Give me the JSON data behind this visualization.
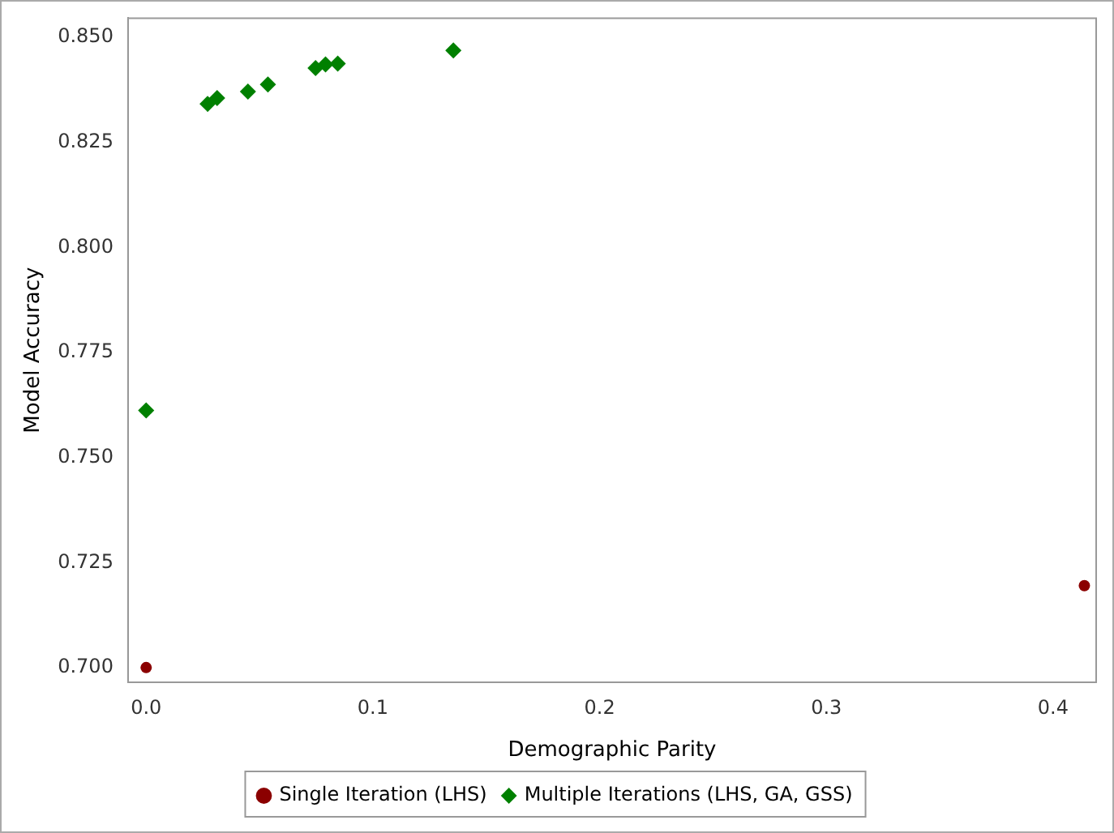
{
  "chart_data": {
    "type": "scatter",
    "xlabel": "Demographic Parity",
    "ylabel": "Model Accuracy",
    "xlim": [
      -0.008,
      0.419
    ],
    "ylim": [
      0.6965,
      0.8546
    ],
    "xticks": [
      {
        "value": 0,
        "label": "0.0"
      },
      0.1,
      0.2,
      0.3,
      0.4
    ],
    "yticks": [
      {
        "value": 0.7,
        "label": "0.700"
      },
      0.725,
      {
        "value": 0.75,
        "label": "0.750"
      },
      0.775,
      {
        "value": 0.8,
        "label": "0.800"
      },
      0.825,
      {
        "value": 0.85,
        "label": "0.850"
      }
    ],
    "grid": false,
    "legend": "bottom",
    "series": [
      {
        "name": "Single Iteration (LHS)",
        "color": "#8b0000",
        "marker": "circle",
        "x": [
          0,
          0.4138
        ],
        "values": [
          0.7,
          0.7195
        ]
      },
      {
        "name": "Multiple Iterations (LHS, GA, GSS)",
        "color": "#008000",
        "marker": "diamond",
        "x": [
          0,
          0.0271,
          0.0313,
          0.0449,
          0.0537,
          0.0747,
          0.0791,
          0.0845,
          0.1355
        ],
        "values": [
          0.7612,
          0.8342,
          0.8356,
          0.8371,
          0.8388,
          0.8427,
          0.8436,
          0.8438,
          0.8469
        ]
      }
    ]
  }
}
